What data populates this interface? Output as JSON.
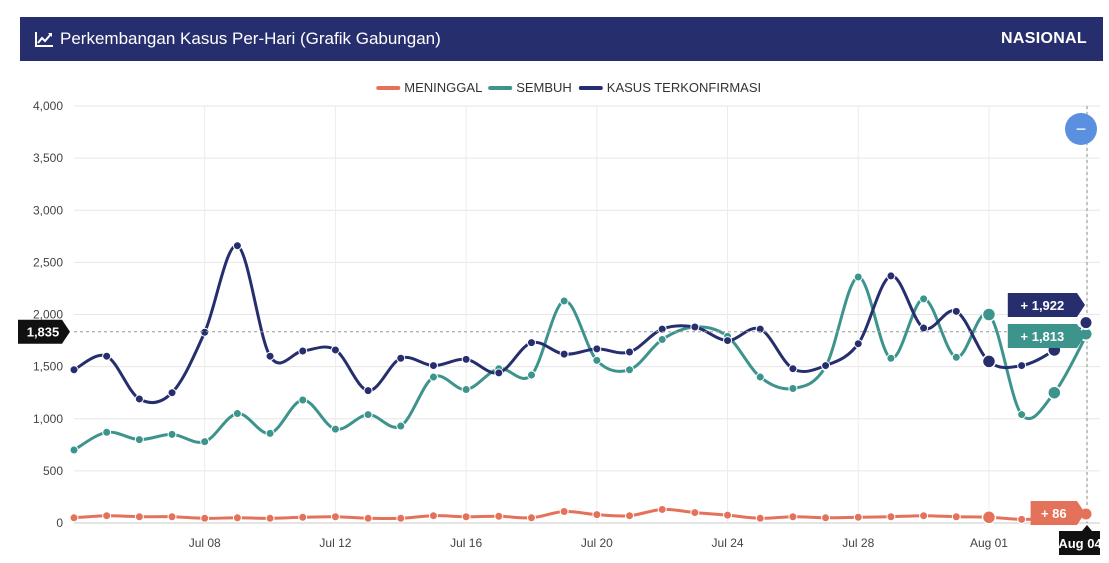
{
  "header": {
    "title": "Perkembangan Kasus Per-Hari (Grafik Gabungan)",
    "region": "NASIONAL",
    "icon": "line-chart-icon"
  },
  "controls": {
    "zoom_out_icon": "minus-icon",
    "zoom_out_symbol": "−"
  },
  "chart_data": {
    "type": "line",
    "title": "Perkembangan Kasus Per-Hari (Grafik Gabungan)",
    "xlabel": "",
    "ylabel": "",
    "ylim": [
      0,
      4000
    ],
    "yticks": [
      0,
      500,
      1000,
      1500,
      2000,
      2500,
      3000,
      3500,
      4000
    ],
    "ytick_labels": [
      "0",
      "500",
      "1,000",
      "1,500",
      "2,000",
      "2,500",
      "3,000",
      "3,500",
      "4,000"
    ],
    "grid": true,
    "legend_position": "top-center",
    "x": [
      "Jul 04",
      "Jul 05",
      "Jul 06",
      "Jul 07",
      "Jul 08",
      "Jul 09",
      "Jul 10",
      "Jul 11",
      "Jul 12",
      "Jul 13",
      "Jul 14",
      "Jul 15",
      "Jul 16",
      "Jul 17",
      "Jul 18",
      "Jul 19",
      "Jul 20",
      "Jul 21",
      "Jul 22",
      "Jul 23",
      "Jul 24",
      "Jul 25",
      "Jul 26",
      "Jul 27",
      "Jul 28",
      "Jul 29",
      "Jul 30",
      "Jul 31",
      "Aug 01",
      "Aug 02",
      "Aug 03",
      "Aug 04"
    ],
    "xtick_labels": [
      "Jul 08",
      "Jul 12",
      "Jul 16",
      "Jul 20",
      "Jul 24",
      "Jul 28",
      "Aug 01",
      "Aug 04"
    ],
    "series": [
      {
        "name": "MENINGGAL",
        "color": "#e4725a",
        "values": [
          50,
          70,
          60,
          60,
          45,
          50,
          45,
          55,
          60,
          45,
          45,
          70,
          60,
          65,
          50,
          110,
          80,
          70,
          130,
          100,
          75,
          45,
          60,
          50,
          55,
          60,
          70,
          60,
          55,
          35,
          45,
          86
        ]
      },
      {
        "name": "SEMBUH",
        "color": "#3c948c",
        "values": [
          700,
          870,
          800,
          850,
          780,
          1050,
          860,
          1180,
          900,
          1040,
          930,
          1400,
          1280,
          1480,
          1420,
          2130,
          1560,
          1470,
          1760,
          1880,
          1790,
          1400,
          1290,
          1500,
          2360,
          1580,
          2150,
          1590,
          2000,
          1040,
          1250,
          1813
        ]
      },
      {
        "name": "KASUS TERKONFIRMASI",
        "color": "#262e6e",
        "values": [
          1470,
          1600,
          1190,
          1250,
          1830,
          2660,
          1600,
          1650,
          1660,
          1270,
          1580,
          1510,
          1570,
          1440,
          1730,
          1620,
          1670,
          1640,
          1860,
          1880,
          1750,
          1860,
          1480,
          1510,
          1720,
          2370,
          1870,
          2030,
          1550,
          1510,
          1660,
          1922
        ]
      }
    ],
    "hover": {
      "date": "Aug 04",
      "crosshair_value": "1,835",
      "labels": [
        {
          "series": "KASUS TERKONFIRMASI",
          "text": "+ 1,922",
          "color": "#262e6e"
        },
        {
          "series": "SEMBUH",
          "text": "+ 1,813",
          "color": "#3c948c"
        },
        {
          "series": "MENINGGAL",
          "text": "+ 86",
          "color": "#e4725a"
        }
      ]
    }
  }
}
